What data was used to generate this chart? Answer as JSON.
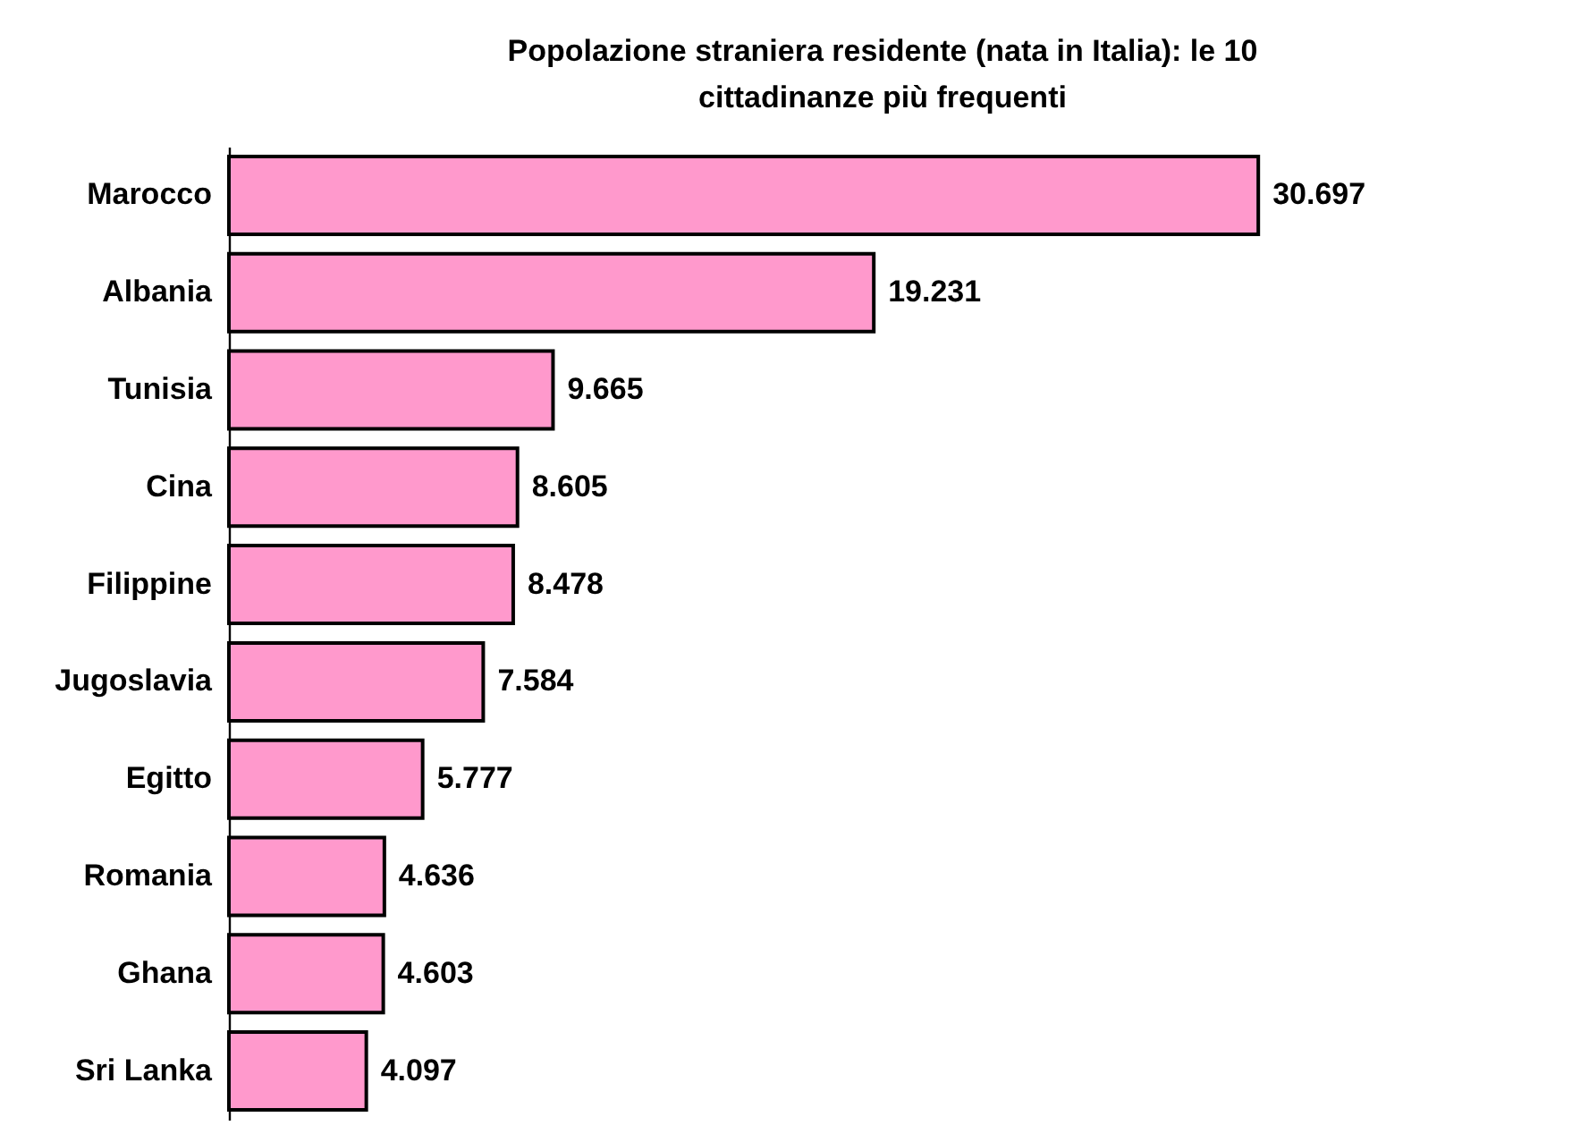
{
  "chart_data": {
    "type": "bar",
    "orientation": "horizontal",
    "title": "Popolazione straniera residente (nata in Italia): le 10 cittadinanze più frequenti",
    "categories": [
      "Marocco",
      "Albania",
      "Tunisia",
      "Cina",
      "Filippine",
      "Jugoslavia",
      "Egitto",
      "Romania",
      "Ghana",
      "Sri Lanka"
    ],
    "values": [
      30697,
      19231,
      9665,
      8605,
      8478,
      7584,
      5777,
      4636,
      4603,
      4097
    ],
    "value_labels": [
      "30.697",
      "19.231",
      "9.665",
      "8.605",
      "8.478",
      "7.584",
      "5.777",
      "4.636",
      "4.603",
      "4.097"
    ],
    "color": "#ff99cc"
  }
}
